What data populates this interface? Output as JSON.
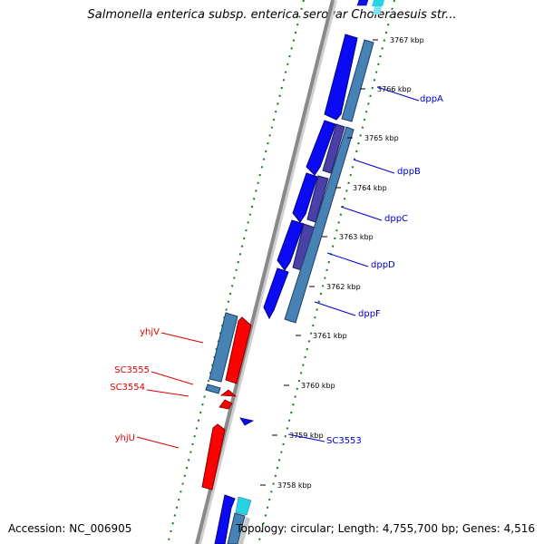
{
  "title": "Salmonella enterica subsp. enterica serovar Choleraesuis str...",
  "footer": {
    "accession": "Accession: NC_006905",
    "summary": "Topology: circular; Length: 4,755,700 bp; Genes: 4,516"
  },
  "colors": {
    "backbone": "#8a8a8a",
    "forward_gene": "#0000ff",
    "forward_gene_alt": "#4b3fa8",
    "steelblue": "#4682b4",
    "reverse_gene": "#ff0000",
    "cyan": "#00c8c8",
    "gc_dots": "#006400",
    "forward_label": "#0000cc",
    "reverse_label": "#dd0000"
  },
  "ticks": [
    "3767 kbp",
    "3766 kbp",
    "3765 kbp",
    "3764 kbp",
    "3763 kbp",
    "3762 kbp",
    "3761 kbp",
    "3760 kbp",
    "3759 kbp",
    "3758 kbp"
  ],
  "genes_forward": [
    {
      "name": "dppA"
    },
    {
      "name": "dppB"
    },
    {
      "name": "dppC"
    },
    {
      "name": "dppD"
    },
    {
      "name": "dppF"
    },
    {
      "name": "SC3553"
    }
  ],
  "genes_reverse": [
    {
      "name": "yhjV"
    },
    {
      "name": "SC3555"
    },
    {
      "name": "SC3554"
    },
    {
      "name": "yhjU"
    }
  ]
}
